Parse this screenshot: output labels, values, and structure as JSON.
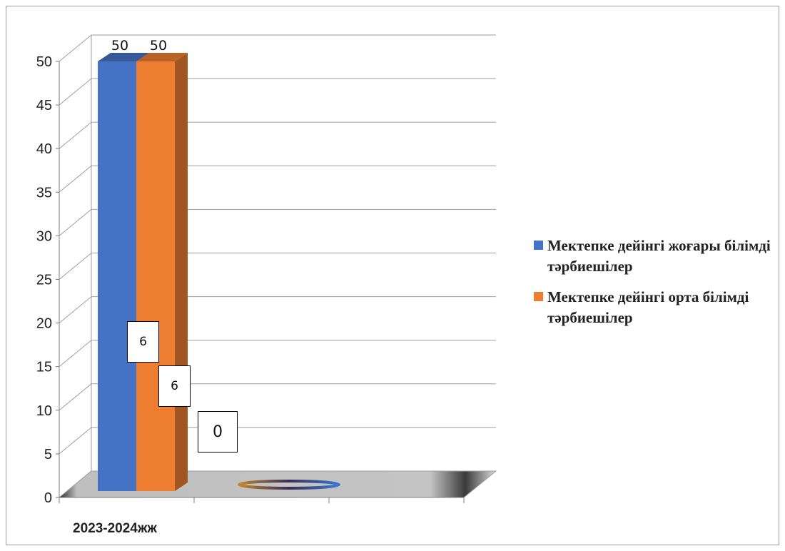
{
  "chart_data": {
    "type": "bar",
    "categories": [
      "2023-2024жж"
    ],
    "series": [
      {
        "name": "Мектепке дейінгі жоғары білімді тәрбиешілер",
        "values": [
          50
        ],
        "color": "#4472C4"
      },
      {
        "name": "Мектепке дейінгі орта білімді тәрбиешілер",
        "values": [
          50
        ],
        "color": "#ED7D31"
      }
    ],
    "data_labels": [
      "50",
      "50"
    ],
    "callouts": [
      "6",
      "6",
      "0"
    ],
    "ylim": [
      0,
      50
    ],
    "yticks": [
      "0",
      "5",
      "10",
      "15",
      "20",
      "25",
      "30",
      "35",
      "40",
      "45",
      "50"
    ],
    "grid": true,
    "three_d": true,
    "legend_position": "right",
    "title": "",
    "xlabel": "",
    "ylabel": ""
  }
}
